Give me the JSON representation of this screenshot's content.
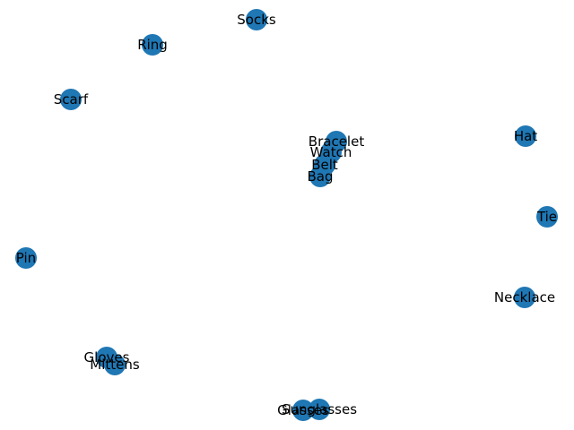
{
  "colors": {
    "node_fill": "#1f77b4",
    "label": "#000000",
    "background": "#ffffff"
  },
  "nodes": [
    {
      "id": "socks",
      "label": "Socks"
    },
    {
      "id": "ring",
      "label": "Ring"
    },
    {
      "id": "scarf",
      "label": "Scarf"
    },
    {
      "id": "bracelet",
      "label": "Bracelet"
    },
    {
      "id": "watch",
      "label": "Watch"
    },
    {
      "id": "belt",
      "label": "Belt"
    },
    {
      "id": "bag",
      "label": "Bag"
    },
    {
      "id": "hat",
      "label": "Hat"
    },
    {
      "id": "tie",
      "label": "Tie"
    },
    {
      "id": "pin",
      "label": "Pin"
    },
    {
      "id": "necklace",
      "label": "Necklace"
    },
    {
      "id": "gloves",
      "label": "Gloves"
    },
    {
      "id": "mittens",
      "label": "Mittens"
    },
    {
      "id": "sunglasses",
      "label": "Sunglasses"
    },
    {
      "id": "glasses",
      "label": "Glasses"
    }
  ]
}
